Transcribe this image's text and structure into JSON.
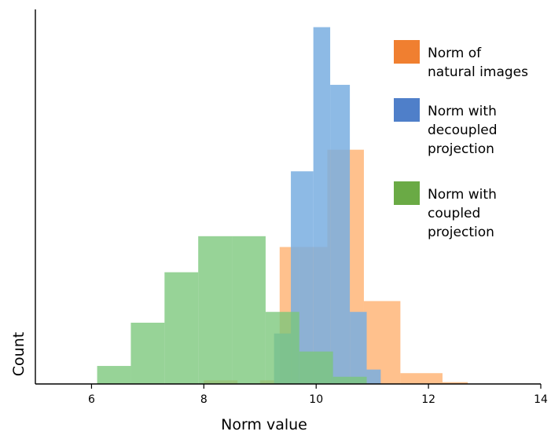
{
  "chart_data": {
    "type": "bar",
    "subtype": "overlaid-histogram",
    "xlabel": "Norm value",
    "ylabel": "Count",
    "xlim": [
      5,
      14
    ],
    "ylim": [
      0,
      100
    ],
    "xticks": [
      6,
      8,
      10,
      12,
      14
    ],
    "grid": false,
    "legend_position": "top-right",
    "series": [
      {
        "name": "Norm of natural images",
        "color": "#ff9f50",
        "legend_color": "#f07f30",
        "opacity": 0.65,
        "bins": [
          {
            "x0": 8.0,
            "x1": 8.6,
            "count": 1
          },
          {
            "x0": 9.0,
            "x1": 9.35,
            "count": 1
          },
          {
            "x0": 9.35,
            "x1": 9.7,
            "count": 38
          },
          {
            "x0": 9.7,
            "x1": 10.2,
            "count": 38
          },
          {
            "x0": 10.2,
            "x1": 10.85,
            "count": 65
          },
          {
            "x0": 10.85,
            "x1": 11.5,
            "count": 23
          },
          {
            "x0": 11.5,
            "x1": 12.25,
            "count": 3
          },
          {
            "x0": 12.25,
            "x1": 12.7,
            "count": 0.5
          }
        ]
      },
      {
        "name": "Norm with decoupled projection",
        "color": "#79aee0",
        "legend_color": "#4f7fc9",
        "opacity": 0.85,
        "bins": [
          {
            "x0": 9.25,
            "x1": 9.55,
            "count": 14
          },
          {
            "x0": 9.55,
            "x1": 9.95,
            "count": 59
          },
          {
            "x0": 9.95,
            "x1": 10.25,
            "count": 99
          },
          {
            "x0": 10.25,
            "x1": 10.6,
            "count": 83
          },
          {
            "x0": 10.6,
            "x1": 10.9,
            "count": 20
          },
          {
            "x0": 10.9,
            "x1": 11.15,
            "count": 4
          }
        ]
      },
      {
        "name": "Norm with coupled projection",
        "color": "#7ac77a",
        "legend_color": "#6aaa45",
        "opacity": 0.78,
        "bins": [
          {
            "x0": 6.1,
            "x1": 6.7,
            "count": 5
          },
          {
            "x0": 6.7,
            "x1": 7.3,
            "count": 17
          },
          {
            "x0": 7.3,
            "x1": 7.9,
            "count": 31
          },
          {
            "x0": 7.9,
            "x1": 8.5,
            "count": 41
          },
          {
            "x0": 8.5,
            "x1": 9.1,
            "count": 41
          },
          {
            "x0": 9.1,
            "x1": 9.7,
            "count": 20
          },
          {
            "x0": 9.7,
            "x1": 10.3,
            "count": 9
          },
          {
            "x0": 10.3,
            "x1": 10.9,
            "count": 2
          }
        ]
      }
    ],
    "legend": [
      {
        "lines": [
          "Norm of",
          "natural images"
        ]
      },
      {
        "lines": [
          "Norm with",
          "decoupled",
          "projection"
        ]
      },
      {
        "lines": [
          "Norm with",
          "coupled",
          "projection"
        ]
      }
    ]
  }
}
